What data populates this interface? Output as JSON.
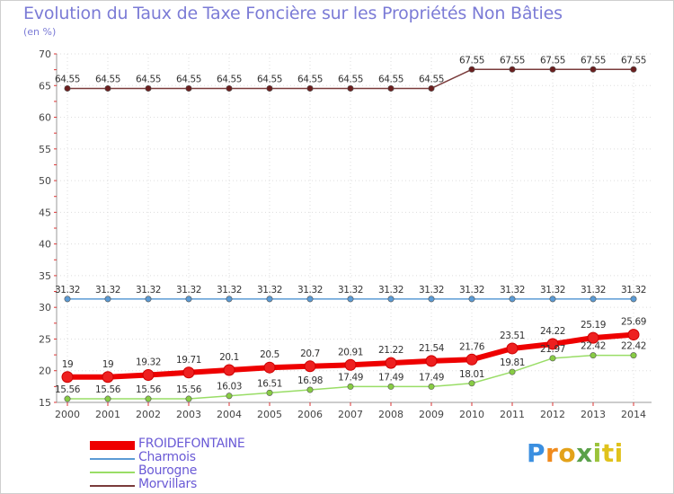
{
  "title": "Evolution du Taux de Taxe Foncière sur les Propriétés Non Bâties",
  "unit": "(en %)",
  "logo": {
    "letters": [
      "P",
      "r",
      "o",
      "x",
      "i",
      "t",
      "i"
    ]
  },
  "chart_data": {
    "type": "line",
    "title": "Evolution du Taux de Taxe Foncière sur les Propriétés Non Bâties",
    "ylabel": "(en %)",
    "xlabel": "",
    "ylim": [
      15,
      70
    ],
    "yticks": [
      15,
      20,
      25,
      30,
      35,
      40,
      45,
      50,
      55,
      60,
      65,
      70
    ],
    "categories": [
      "2000",
      "2001",
      "2002",
      "2003",
      "2004",
      "2005",
      "2006",
      "2007",
      "2008",
      "2009",
      "2010",
      "2011",
      "2012",
      "2013",
      "2014"
    ],
    "series": [
      {
        "name": "FROIDEFONTAINE",
        "color": "#ee0000",
        "marker": "#ee2020",
        "width": 6,
        "legend_width": 10,
        "values": [
          19,
          19,
          19.32,
          19.71,
          20.1,
          20.5,
          20.7,
          20.91,
          21.22,
          21.54,
          21.76,
          23.51,
          24.22,
          25.19,
          25.69
        ],
        "labels": [
          "19",
          "19",
          "19.32",
          "19.71",
          "20.1",
          "20.5",
          "20.7",
          "20.91",
          "21.22",
          "21.54",
          "21.76",
          "23.51",
          "24.22",
          "25.19",
          "25.69"
        ]
      },
      {
        "name": "Charmois",
        "color": "#5b9bd5",
        "marker": "#5b9bd5",
        "width": 1.5,
        "legend_width": 2,
        "values": [
          31.32,
          31.32,
          31.32,
          31.32,
          31.32,
          31.32,
          31.32,
          31.32,
          31.32,
          31.32,
          31.32,
          31.32,
          31.32,
          31.32,
          31.32
        ],
        "labels": [
          "31.32",
          "31.32",
          "31.32",
          "31.32",
          "31.32",
          "31.32",
          "31.32",
          "31.32",
          "31.32",
          "31.32",
          "31.32",
          "31.32",
          "31.32",
          "31.32",
          "31.32"
        ]
      },
      {
        "name": "Bourogne",
        "color": "#99dd66",
        "marker": "#88cc44",
        "width": 1.5,
        "legend_width": 2,
        "values": [
          15.56,
          15.56,
          15.56,
          15.56,
          16.03,
          16.51,
          16.98,
          17.49,
          17.49,
          17.49,
          18.01,
          19.81,
          21.97,
          22.42,
          22.42
        ],
        "labels": [
          "15.56",
          "15.56",
          "15.56",
          "15.56",
          "16.03",
          "16.51",
          "16.98",
          "17.49",
          "17.49",
          "17.49",
          "18.01",
          "19.81",
          "21.97",
          "22.42",
          "22.42"
        ]
      },
      {
        "name": "Morvillars",
        "color": "#7a3b3b",
        "marker": "#6b1f1f",
        "width": 1.5,
        "legend_width": 2,
        "values": [
          64.55,
          64.55,
          64.55,
          64.55,
          64.55,
          64.55,
          64.55,
          64.55,
          64.55,
          64.55,
          67.55,
          67.55,
          67.55,
          67.55,
          67.55
        ],
        "labels": [
          "64.55",
          "64.55",
          "64.55",
          "64.55",
          "64.55",
          "64.55",
          "64.55",
          "64.55",
          "64.55",
          "64.55",
          "67.55",
          "67.55",
          "67.55",
          "67.55",
          "67.55"
        ]
      }
    ]
  }
}
